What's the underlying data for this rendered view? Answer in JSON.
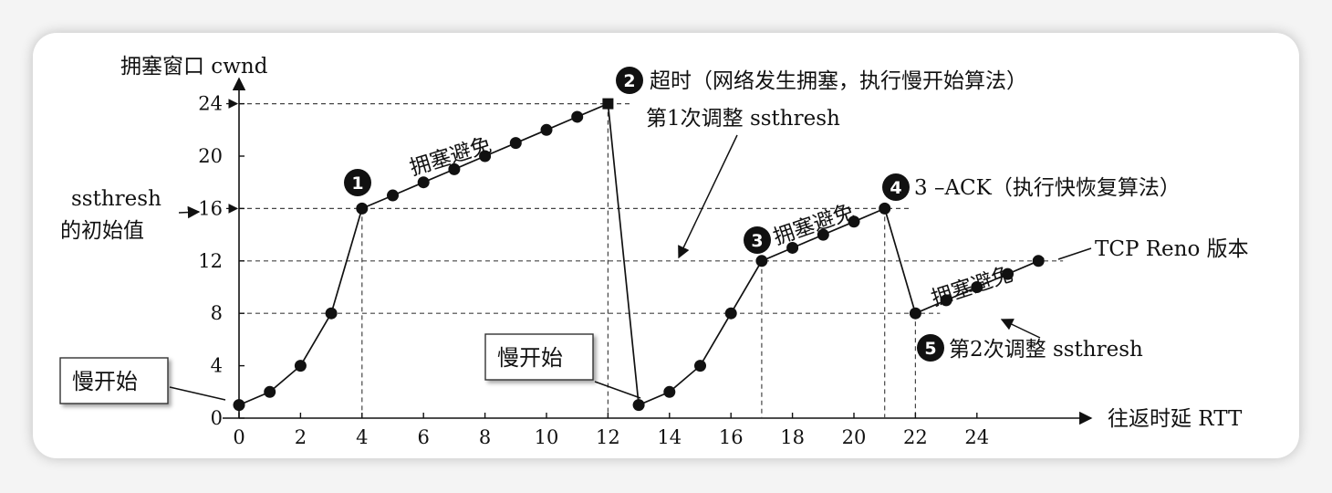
{
  "chart_data": {
    "type": "line",
    "ylabel": "拥塞窗口 cwnd",
    "xlabel": "往返时延 RTT",
    "xlim": [
      0,
      28
    ],
    "ylim": [
      0,
      26
    ],
    "x_ticks": [
      0,
      2,
      4,
      6,
      8,
      10,
      12,
      14,
      16,
      18,
      20,
      22,
      24
    ],
    "y_ticks": [
      0,
      4,
      8,
      12,
      16,
      20,
      24
    ],
    "grid": false,
    "series": [
      {
        "name": "",
        "points": [
          [
            0,
            1
          ],
          [
            1,
            2
          ],
          [
            2,
            4
          ],
          [
            3,
            8
          ],
          [
            4,
            16
          ],
          [
            5,
            17
          ],
          [
            6,
            18
          ],
          [
            7,
            19
          ],
          [
            8,
            20
          ],
          [
            9,
            21
          ],
          [
            10,
            22
          ],
          [
            11,
            23
          ],
          [
            12,
            24
          ],
          [
            13,
            1
          ],
          [
            14,
            2
          ],
          [
            15,
            4
          ],
          [
            16,
            8
          ],
          [
            17,
            12
          ],
          [
            18,
            13
          ],
          [
            19,
            14
          ],
          [
            20,
            15
          ],
          [
            21,
            16
          ],
          [
            22,
            8
          ],
          [
            23,
            9
          ],
          [
            24,
            10
          ],
          [
            25,
            11
          ],
          [
            26,
            12
          ]
        ]
      }
    ],
    "reference_lines": [
      {
        "axis": "y",
        "value": 24
      },
      {
        "axis": "y",
        "value": 16
      },
      {
        "axis": "y",
        "value": 12
      },
      {
        "axis": "y",
        "value": 8
      },
      {
        "axis": "x",
        "value": 4
      },
      {
        "axis": "x",
        "value": 12
      },
      {
        "axis": "x",
        "value": 17
      },
      {
        "axis": "x",
        "value": 21
      },
      {
        "axis": "x",
        "value": 22
      }
    ],
    "markers": [
      {
        "num": "1",
        "x": 4,
        "y": 16
      },
      {
        "num": "2",
        "x": 12,
        "y": 24,
        "text": "超时（网络发生拥塞，执行慢开始算法）"
      },
      {
        "num": "3",
        "x": 17,
        "y": 12
      },
      {
        "num": "4",
        "x": 21,
        "y": 16,
        "text": "3 –ACK（执行快恢复算法）"
      },
      {
        "num": "5",
        "x": 22,
        "y": 8,
        "text": "第2次调整 ssthresh"
      }
    ],
    "annotations": {
      "ssthresh_initial": [
        "ssthresh",
        "的初始值"
      ],
      "slow_start": "慢开始",
      "congestion_avoidance": "拥塞避免",
      "first_adjust": "第1次调整 ssthresh",
      "reno": "TCP Reno 版本"
    }
  }
}
